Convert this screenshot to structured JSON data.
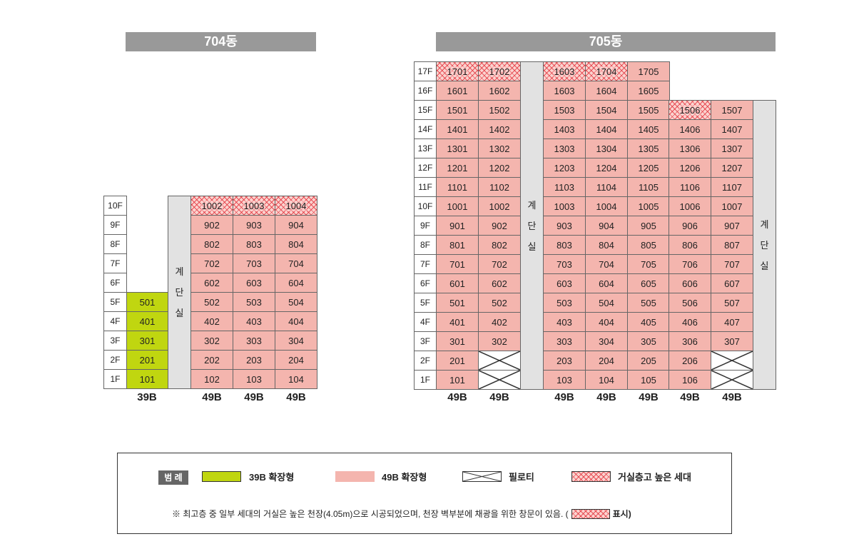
{
  "b704": {
    "title": "704동",
    "floors": [
      "10F",
      "9F",
      "8F",
      "7F",
      "6F",
      "5F",
      "4F",
      "3F",
      "2F",
      "1F"
    ],
    "stair_chars": [
      "계",
      "단",
      "실"
    ],
    "col39": [
      "",
      "",
      "",
      "",
      "",
      "501",
      "401",
      "301",
      "201",
      "101"
    ],
    "col39_label": "39B",
    "cols49": [
      [
        "1002",
        "902",
        "802",
        "702",
        "602",
        "502",
        "402",
        "302",
        "202",
        "102"
      ],
      [
        "1003",
        "903",
        "803",
        "703",
        "603",
        "503",
        "403",
        "303",
        "203",
        "103"
      ],
      [
        "1004",
        "904",
        "804",
        "704",
        "604",
        "504",
        "404",
        "304",
        "204",
        "104"
      ]
    ],
    "cols49_labels": [
      "49B",
      "49B",
      "49B"
    ],
    "tall_units": [
      "1002",
      "1003",
      "1004"
    ]
  },
  "b705": {
    "title": "705동",
    "floors": [
      "17F",
      "16F",
      "15F",
      "14F",
      "13F",
      "12F",
      "11F",
      "10F",
      "9F",
      "8F",
      "7F",
      "6F",
      "5F",
      "4F",
      "3F",
      "2F",
      "1F"
    ],
    "stair_chars": [
      "계",
      "단",
      "실"
    ],
    "left_cols": [
      [
        "1701",
        "1601",
        "1501",
        "1401",
        "1301",
        "1201",
        "1101",
        "1001",
        "901",
        "801",
        "701",
        "601",
        "501",
        "401",
        "301",
        "201",
        "101"
      ],
      [
        "1702",
        "1602",
        "1502",
        "1402",
        "1302",
        "1202",
        "1102",
        "1002",
        "902",
        "802",
        "702",
        "602",
        "502",
        "402",
        "302",
        "",
        ""
      ]
    ],
    "mid_cols": [
      [
        "1603",
        "1603",
        "1503",
        "1403",
        "1303",
        "1203",
        "1103",
        "1003",
        "903",
        "803",
        "703",
        "603",
        "503",
        "403",
        "303",
        "203",
        "103"
      ],
      [
        "1704",
        "1604",
        "1504",
        "1404",
        "1304",
        "1204",
        "1104",
        "1004",
        "904",
        "804",
        "704",
        "604",
        "504",
        "404",
        "304",
        "204",
        "104"
      ],
      [
        "1705",
        "1605",
        "1505",
        "1405",
        "1305",
        "1205",
        "1105",
        "1005",
        "905",
        "805",
        "705",
        "605",
        "505",
        "405",
        "305",
        "205",
        "105"
      ]
    ],
    "right_cols": [
      [
        "1506",
        "1406",
        "1306",
        "1206",
        "1106",
        "1006",
        "906",
        "806",
        "706",
        "606",
        "506",
        "406",
        "306",
        "206",
        "106"
      ],
      [
        "1507",
        "1407",
        "1307",
        "1207",
        "1107",
        "1007",
        "907",
        "807",
        "707",
        "607",
        "507",
        "407",
        "307",
        "",
        ""
      ]
    ],
    "col_labels": [
      "49B",
      "49B",
      "49B",
      "49B",
      "49B",
      "49B",
      "49B"
    ],
    "tall_units": [
      "1701",
      "1702",
      "1603-17F",
      "1704",
      "1506"
    ]
  },
  "legend": {
    "title": "범 례",
    "items": [
      "39B 확장형",
      "49B 확장형",
      "필로티",
      "거실층고 높은 세대"
    ],
    "note_prefix": "※ 최고층 중 일부 세대의 거실은 높은 천장(4.05m)으로 시공되었으며, 천장 벽부분에 채광을 위한 창문이 있음. (",
    "note_suffix": "표시)"
  },
  "colors": {
    "unit49": "#f4b5ae",
    "unit39": "#c0d610",
    "tall_hatch": "#e12832",
    "header": "#999999",
    "stair": "#e2e2e2"
  }
}
